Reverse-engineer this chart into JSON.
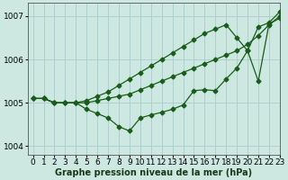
{
  "title": "Graphe pression niveau de la mer (hPa)",
  "background_color": "#cce8e0",
  "grid_color": "#aacccc",
  "line_color": "#1a5c1a",
  "xlim": [
    -0.5,
    23
  ],
  "ylim": [
    1003.8,
    1007.3
  ],
  "yticks": [
    1004,
    1005,
    1006,
    1007
  ],
  "xticks": [
    0,
    1,
    2,
    3,
    4,
    5,
    6,
    7,
    8,
    9,
    10,
    11,
    12,
    13,
    14,
    15,
    16,
    17,
    18,
    19,
    20,
    21,
    22,
    23
  ],
  "line1_x": [
    0,
    1,
    2,
    3,
    4,
    5,
    6,
    7,
    8,
    9,
    10,
    11,
    12,
    13,
    14,
    15,
    16,
    17,
    18,
    19,
    20,
    21,
    22,
    23
  ],
  "line1_y": [
    1005.1,
    1005.1,
    1005.0,
    1005.0,
    1005.0,
    1004.85,
    1004.75,
    1004.65,
    1004.45,
    1004.35,
    1004.65,
    1004.72,
    1004.78,
    1004.85,
    1004.95,
    1005.28,
    1005.3,
    1005.28,
    1005.55,
    1005.8,
    1006.2,
    1005.5,
    1006.82,
    1006.95
  ],
  "line2_x": [
    0,
    1,
    2,
    3,
    4,
    5,
    6,
    7,
    8,
    9,
    10,
    11,
    12,
    13,
    14,
    15,
    16,
    17,
    18,
    19,
    20,
    21,
    22,
    23
  ],
  "line2_y": [
    1005.1,
    1005.1,
    1005.0,
    1005.0,
    1005.0,
    1005.0,
    1005.05,
    1005.1,
    1005.15,
    1005.2,
    1005.3,
    1005.4,
    1005.5,
    1005.6,
    1005.7,
    1005.8,
    1005.9,
    1006.0,
    1006.1,
    1006.2,
    1006.35,
    1006.55,
    1006.8,
    1007.0
  ],
  "line3_x": [
    0,
    1,
    2,
    3,
    4,
    5,
    6,
    7,
    8,
    9,
    10,
    11,
    12,
    13,
    14,
    15,
    16,
    17,
    18,
    19,
    20,
    21,
    22,
    23
  ],
  "line3_y": [
    1005.1,
    1005.1,
    1005.0,
    1005.0,
    1005.0,
    1005.05,
    1005.15,
    1005.25,
    1005.4,
    1005.55,
    1005.7,
    1005.85,
    1006.0,
    1006.15,
    1006.3,
    1006.45,
    1006.6,
    1006.7,
    1006.8,
    1006.5,
    1006.2,
    1006.75,
    1006.85,
    1007.1
  ],
  "marker": "D",
  "marker_size": 2.5,
  "linewidth": 0.9,
  "tick_fontsize": 6.5,
  "title_fontsize": 7.0
}
